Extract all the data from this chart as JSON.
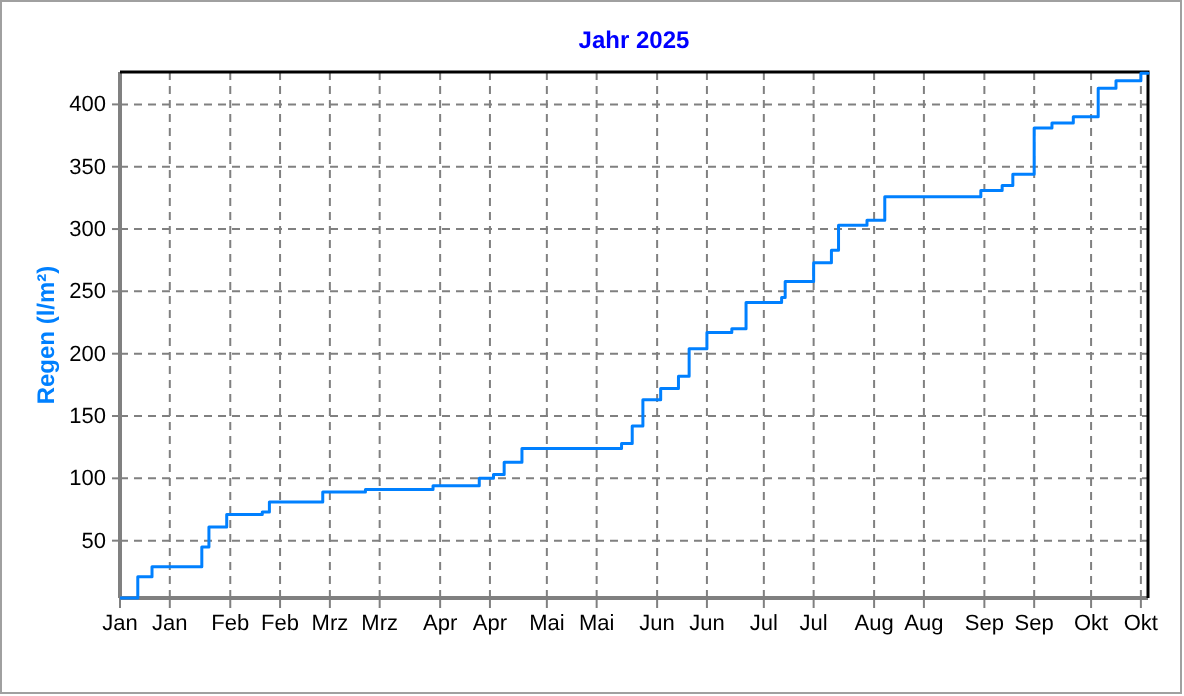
{
  "chart_data": {
    "type": "step",
    "title": "Jahr 2025",
    "ylabel": "Regen (l/m²)",
    "x": [
      "2025-01-01",
      "2025-01-06",
      "2025-01-10",
      "2025-01-24",
      "2025-01-26",
      "2025-01-31",
      "2025-02-10",
      "2025-02-12",
      "2025-02-27",
      "2025-03-11",
      "2025-03-30",
      "2025-04-12",
      "2025-04-16",
      "2025-04-19",
      "2025-04-24",
      "2025-05-22",
      "2025-05-25",
      "2025-05-28",
      "2025-06-02",
      "2025-06-07",
      "2025-06-10",
      "2025-06-15",
      "2025-06-22",
      "2025-06-26",
      "2025-07-06",
      "2025-07-07",
      "2025-07-15",
      "2025-07-20",
      "2025-07-22",
      "2025-07-30",
      "2025-08-04",
      "2025-08-31",
      "2025-09-06",
      "2025-09-09",
      "2025-09-15",
      "2025-09-20",
      "2025-09-26",
      "2025-10-03",
      "2025-10-08",
      "2025-10-15",
      "2025-10-17"
    ],
    "series": [
      {
        "color": "#0080ff",
        "values": [
          4,
          21,
          29,
          45,
          61,
          71,
          73,
          81,
          89,
          91,
          94,
          100,
          103,
          113,
          124,
          128,
          142,
          163,
          172,
          182,
          204,
          217,
          220,
          241,
          245,
          258,
          273,
          283,
          303,
          307,
          326,
          331,
          335,
          344,
          381,
          385,
          390,
          413,
          419,
          425,
          426
        ]
      }
    ],
    "xlim": [
      "2025-01-01",
      "2025-10-17"
    ],
    "ylim": [
      4,
      426
    ],
    "xticks": [
      {
        "value": "2025-01-01",
        "label": "Jan"
      },
      {
        "value": "2025-01-15",
        "label": "Jan"
      },
      {
        "value": "2025-02-01",
        "label": "Feb"
      },
      {
        "value": "2025-02-15",
        "label": "Feb"
      },
      {
        "value": "2025-03-01",
        "label": "Mrz"
      },
      {
        "value": "2025-03-15",
        "label": "Mrz"
      },
      {
        "value": "2025-04-01",
        "label": "Apr"
      },
      {
        "value": "2025-04-15",
        "label": "Apr"
      },
      {
        "value": "2025-05-01",
        "label": "Mai"
      },
      {
        "value": "2025-05-15",
        "label": "Mai"
      },
      {
        "value": "2025-06-01",
        "label": "Jun"
      },
      {
        "value": "2025-06-15",
        "label": "Jun"
      },
      {
        "value": "2025-07-01",
        "label": "Jul"
      },
      {
        "value": "2025-07-15",
        "label": "Jul"
      },
      {
        "value": "2025-08-01",
        "label": "Aug"
      },
      {
        "value": "2025-08-15",
        "label": "Aug"
      },
      {
        "value": "2025-09-01",
        "label": "Sep"
      },
      {
        "value": "2025-09-15",
        "label": "Sep"
      },
      {
        "value": "2025-10-01",
        "label": "Okt"
      },
      {
        "value": "2025-10-15",
        "label": "Okt"
      }
    ],
    "yticks": [
      50,
      100,
      150,
      200,
      250,
      300,
      350,
      400
    ],
    "grid": true
  }
}
